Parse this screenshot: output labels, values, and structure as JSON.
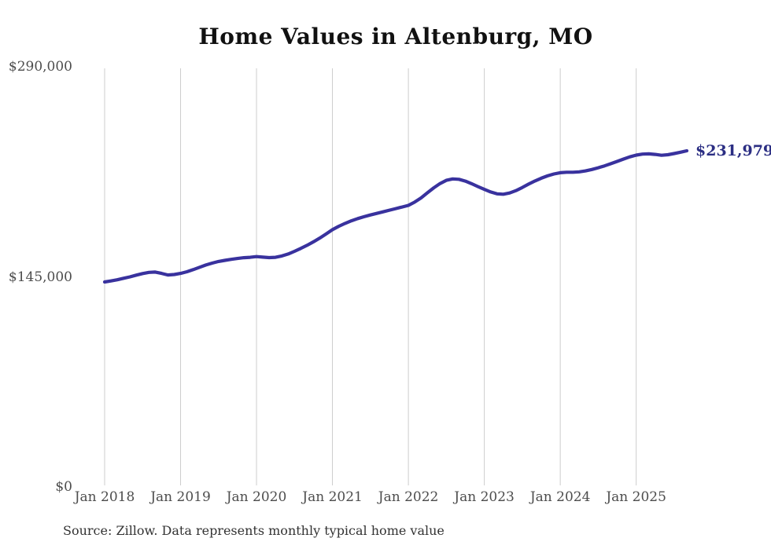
{
  "title": "Home Values in Altenburg, MO",
  "source_note": "Source: Zillow. Data represents monthly typical home value",
  "end_label": "$231,979",
  "colors": {
    "line": "#39329e",
    "end_label": "#2b2e83",
    "grid": "#cccccc",
    "title_text": "#111111",
    "axis_text": "#4d4d4d",
    "background": "#ffffff"
  },
  "chart_data": {
    "type": "line",
    "title": "Home Values in Altenburg, MO",
    "xlabel": "",
    "ylabel": "",
    "ylim": [
      0,
      290000
    ],
    "grid": "vertical-only",
    "legend": "none",
    "y_ticks": [
      {
        "value": 0,
        "label": "$0"
      },
      {
        "value": 145000,
        "label": "$145,000"
      },
      {
        "value": 290000,
        "label": "$290,000"
      }
    ],
    "x_ticks": [
      {
        "month_index": 0,
        "label": "Jan 2018"
      },
      {
        "month_index": 12,
        "label": "Jan 2019"
      },
      {
        "month_index": 24,
        "label": "Jan 2020"
      },
      {
        "month_index": 36,
        "label": "Jan 2021"
      },
      {
        "month_index": 48,
        "label": "Jan 2022"
      },
      {
        "month_index": 60,
        "label": "Jan 2023"
      },
      {
        "month_index": 72,
        "label": "Jan 2024"
      },
      {
        "month_index": 84,
        "label": "Jan 2025"
      }
    ],
    "series": [
      {
        "name": "Monthly typical home value",
        "start_month": "2018-01",
        "end_month": "2025-09",
        "last_value_label": "$231,979",
        "values": [
          141500,
          142200,
          143000,
          144000,
          145000,
          146200,
          147300,
          148100,
          148300,
          147400,
          146300,
          146600,
          147400,
          148500,
          150000,
          151600,
          153200,
          154500,
          155600,
          156400,
          157100,
          157700,
          158200,
          158500,
          159000,
          158600,
          158300,
          158500,
          159400,
          160800,
          162600,
          164600,
          166800,
          169200,
          171800,
          174600,
          177600,
          179900,
          181900,
          183700,
          185200,
          186500,
          187700,
          188800,
          189900,
          191000,
          192100,
          193200,
          194300,
          196600,
          199500,
          203000,
          206400,
          209400,
          211600,
          212600,
          212300,
          211100,
          209300,
          207300,
          205400,
          203600,
          202300,
          202000,
          202900,
          204500,
          206700,
          209000,
          211200,
          213100,
          214700,
          216000,
          216900,
          217200,
          217200,
          217500,
          218100,
          219100,
          220300,
          221600,
          223100,
          224700,
          226300,
          227800,
          229000,
          229700,
          229900,
          229500,
          228900,
          229300,
          230100,
          231000,
          231979
        ]
      }
    ]
  }
}
